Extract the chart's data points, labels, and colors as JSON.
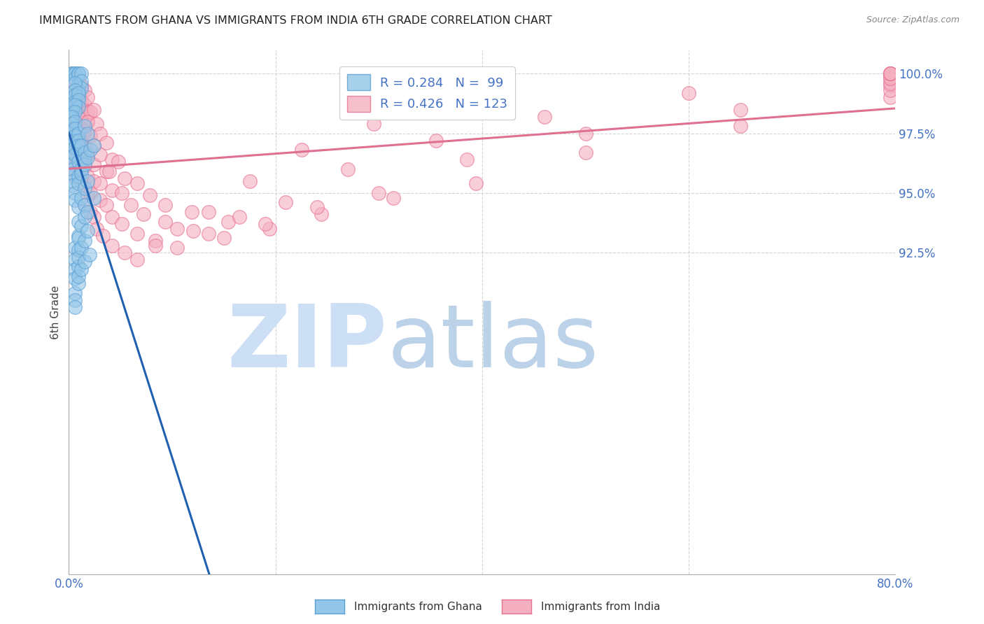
{
  "title": "IMMIGRANTS FROM GHANA VS IMMIGRANTS FROM INDIA 6TH GRADE CORRELATION CHART",
  "source": "Source: ZipAtlas.com",
  "ylabel": "6th Grade",
  "x_min": 0.0,
  "x_max": 80.0,
  "y_min": 79.0,
  "y_max": 101.0,
  "y_ticks": [
    92.5,
    95.0,
    97.5,
    100.0
  ],
  "y_tick_labels": [
    "92.5%",
    "95.0%",
    "97.5%",
    "100.0%"
  ],
  "x_ticks": [
    0.0,
    20.0,
    40.0,
    60.0,
    80.0
  ],
  "x_tick_labels": [
    "0.0%",
    "",
    "",
    "",
    "80.0%"
  ],
  "ghana_color": "#93c6e8",
  "india_color": "#f4afc0",
  "ghana_edge_color": "#5a9fd4",
  "india_edge_color": "#e87090",
  "ghana_line_color": "#2060b0",
  "india_line_color": "#e07090",
  "legend_r_color": "#4472c4",
  "tick_label_color": "#4472c4",
  "grid_color": "#d0d0d0",
  "watermark_zip_color": "#ccdff5",
  "watermark_atlas_color": "#a0bfe0",
  "ghana_N": 99,
  "india_N": 123,
  "ghana_R": 0.284,
  "india_R": 0.426,
  "ghana_x": [
    0.3,
    0.3,
    0.3,
    0.6,
    0.6,
    0.6,
    0.6,
    0.9,
    0.9,
    0.9,
    0.9,
    0.9,
    1.2,
    1.2,
    1.2,
    0.3,
    0.3,
    0.3,
    0.3,
    0.6,
    0.6,
    0.6,
    0.6,
    0.9,
    0.9,
    0.9,
    0.3,
    0.3,
    0.3,
    0.6,
    0.6,
    0.3,
    0.3,
    0.3,
    0.3,
    0.3,
    0.3,
    0.3,
    0.3,
    0.3,
    0.3,
    0.6,
    0.6,
    0.6,
    0.6,
    0.6,
    0.9,
    0.9,
    0.9,
    1.5,
    0.3,
    0.3,
    0.3,
    0.6,
    0.9,
    1.2,
    1.5,
    1.8,
    0.6,
    0.9,
    1.2,
    1.5,
    0.6,
    0.9,
    1.2,
    1.5,
    1.8,
    2.1,
    2.4,
    0.9,
    1.2,
    1.5,
    1.8,
    0.9,
    1.5,
    0.9,
    1.2,
    1.5,
    1.8,
    2.4,
    0.6,
    0.9,
    0.6,
    0.9,
    0.6,
    0.6,
    0.9,
    0.9,
    1.2,
    1.5,
    1.8,
    0.6,
    0.6,
    0.6,
    0.9,
    0.9,
    1.2,
    1.5,
    2.0
  ],
  "ghana_y": [
    100.0,
    100.0,
    100.0,
    100.0,
    100.0,
    100.0,
    99.8,
    100.0,
    100.0,
    99.5,
    99.3,
    99.0,
    100.0,
    99.7,
    99.4,
    99.2,
    99.0,
    98.7,
    98.5,
    99.6,
    99.3,
    99.1,
    98.8,
    99.2,
    98.9,
    98.6,
    98.4,
    98.1,
    97.9,
    98.7,
    98.4,
    98.2,
    97.9,
    97.7,
    97.5,
    97.2,
    97.0,
    96.7,
    96.5,
    96.2,
    96.0,
    98.0,
    97.7,
    97.4,
    97.2,
    96.9,
    97.5,
    97.2,
    97.0,
    97.8,
    95.8,
    95.5,
    95.3,
    96.6,
    96.3,
    97.0,
    96.7,
    97.5,
    95.0,
    95.7,
    96.0,
    96.4,
    94.7,
    95.4,
    95.8,
    96.2,
    96.5,
    96.8,
    97.0,
    94.4,
    94.8,
    95.2,
    95.5,
    93.8,
    94.5,
    93.2,
    93.6,
    94.0,
    94.2,
    94.8,
    92.7,
    93.1,
    92.2,
    92.6,
    91.8,
    91.4,
    91.9,
    92.3,
    92.7,
    93.0,
    93.4,
    90.8,
    90.5,
    90.2,
    91.2,
    91.5,
    91.8,
    92.1,
    92.4
  ],
  "india_x": [
    0.3,
    0.3,
    0.3,
    0.6,
    0.6,
    0.6,
    0.9,
    0.9,
    0.9,
    1.2,
    1.2,
    1.5,
    1.5,
    1.8,
    1.8,
    0.3,
    0.3,
    0.6,
    0.6,
    0.9,
    0.9,
    1.2,
    1.5,
    1.8,
    2.1,
    0.3,
    0.6,
    0.9,
    1.2,
    1.5,
    1.8,
    2.4,
    0.6,
    0.9,
    1.2,
    1.5,
    2.1,
    2.7,
    0.6,
    0.9,
    1.5,
    1.8,
    2.4,
    3.0,
    0.6,
    1.2,
    1.8,
    2.4,
    3.0,
    3.6,
    1.2,
    1.8,
    2.4,
    3.6,
    4.2,
    1.5,
    2.1,
    3.0,
    3.9,
    4.8,
    2.1,
    3.0,
    4.2,
    5.4,
    2.4,
    3.6,
    5.1,
    6.6,
    2.7,
    4.2,
    6.0,
    7.8,
    3.3,
    5.1,
    7.2,
    9.3,
    4.2,
    6.6,
    9.3,
    11.9,
    5.4,
    8.4,
    12.0,
    15.4,
    6.6,
    10.5,
    15.0,
    19.4,
    8.4,
    13.5,
    19.0,
    24.4,
    10.5,
    16.5,
    24.0,
    31.4,
    13.5,
    21.0,
    30.0,
    39.4,
    17.5,
    27.0,
    38.5,
    50.0,
    22.5,
    35.5,
    50.0,
    65.0,
    29.5,
    46.0,
    65.0,
    79.5,
    38.5,
    60.0,
    79.5,
    79.5,
    79.5,
    79.5,
    79.5,
    79.5,
    79.5,
    79.5,
    79.5
  ],
  "india_y": [
    100.0,
    99.5,
    99.0,
    100.0,
    99.3,
    98.7,
    99.8,
    99.2,
    98.6,
    99.5,
    98.9,
    99.3,
    98.7,
    99.0,
    98.4,
    98.0,
    97.4,
    98.5,
    97.9,
    98.3,
    97.7,
    98.1,
    97.5,
    98.0,
    98.4,
    97.0,
    97.4,
    97.8,
    97.2,
    97.6,
    98.0,
    98.5,
    96.7,
    97.1,
    96.5,
    97.0,
    97.4,
    97.9,
    96.2,
    96.7,
    96.1,
    96.6,
    97.0,
    97.5,
    95.7,
    96.2,
    95.7,
    96.2,
    96.6,
    97.1,
    95.5,
    95.0,
    95.5,
    95.9,
    96.4,
    94.5,
    95.0,
    95.4,
    95.9,
    96.3,
    94.2,
    94.7,
    95.1,
    95.6,
    94.0,
    94.5,
    95.0,
    95.4,
    93.5,
    94.0,
    94.5,
    94.9,
    93.2,
    93.7,
    94.1,
    94.5,
    92.8,
    93.3,
    93.8,
    94.2,
    92.5,
    93.0,
    93.4,
    93.8,
    92.2,
    92.7,
    93.1,
    93.5,
    92.8,
    93.3,
    93.7,
    94.1,
    93.5,
    94.0,
    94.4,
    94.8,
    94.2,
    94.6,
    95.0,
    95.4,
    95.5,
    96.0,
    96.4,
    96.7,
    96.8,
    97.2,
    97.5,
    97.8,
    97.9,
    98.2,
    98.5,
    100.0,
    98.8,
    99.2,
    99.5,
    99.8,
    99.0,
    99.3,
    99.6,
    99.8,
    100.0,
    100.0,
    100.0
  ]
}
